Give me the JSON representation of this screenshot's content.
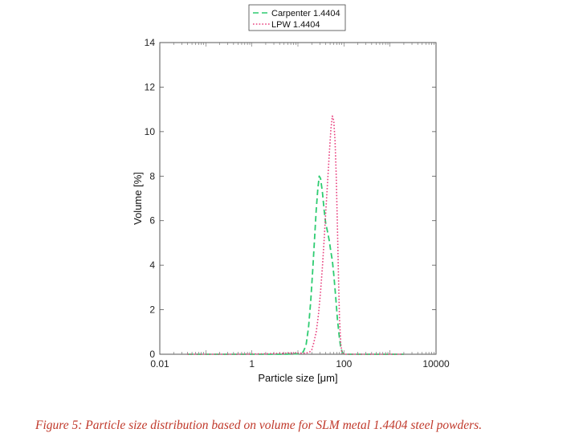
{
  "chart_data": {
    "type": "line",
    "xlabel": "Particle size [μm]",
    "ylabel": "Volume [%]",
    "xscale": "log",
    "xlim": [
      0.01,
      10000
    ],
    "ylim": [
      0,
      14
    ],
    "xticks": [
      0.01,
      1,
      100,
      10000
    ],
    "xtick_labels": [
      "0.01",
      "1",
      "100",
      "10000"
    ],
    "yticks": [
      0,
      2,
      4,
      6,
      8,
      10,
      12,
      14
    ],
    "ytick_labels": [
      "0",
      "2",
      "4",
      "6",
      "8",
      "10",
      "12",
      "14"
    ],
    "legend_position": "top-center",
    "grid": false,
    "series": [
      {
        "name": "Carpenter 1.4404",
        "color": "#2ecc71",
        "style": "dashed",
        "x": [
          0.04,
          0.1,
          0.5,
          2,
          5,
          10,
          13,
          15,
          17,
          19,
          21,
          23,
          25,
          27,
          29,
          31,
          34,
          37,
          40,
          44,
          48,
          52,
          56,
          60,
          66,
          72,
          79,
          85,
          92,
          100,
          120,
          200,
          500,
          1000,
          2000
        ],
        "y": [
          0,
          0,
          0,
          0,
          0,
          0.02,
          0.1,
          0.4,
          1.2,
          2.4,
          3.8,
          5.2,
          6.5,
          7.4,
          8.0,
          7.9,
          7.3,
          6.5,
          5.9,
          5.5,
          5.1,
          4.6,
          4.2,
          3.6,
          2.6,
          1.6,
          0.8,
          0.3,
          0.1,
          0,
          0,
          0,
          0,
          0,
          0
        ]
      },
      {
        "name": "LPW 1.4404",
        "color": "#e8407e",
        "style": "dotted",
        "x": [
          0.04,
          0.1,
          0.5,
          2,
          5,
          10,
          15,
          18,
          20,
          22,
          25,
          28,
          31,
          34,
          37,
          40,
          44,
          48,
          52,
          56,
          60,
          64,
          68,
          72,
          76,
          80,
          85,
          90,
          100,
          150,
          500,
          1000,
          2000
        ],
        "y": [
          0,
          0,
          0,
          0.02,
          0.05,
          0.05,
          0.05,
          0.1,
          0.2,
          0.5,
          1.0,
          1.8,
          2.8,
          3.9,
          5.1,
          6.3,
          7.7,
          9.0,
          10.1,
          10.7,
          10.5,
          9.6,
          8.0,
          5.8,
          3.5,
          1.6,
          0.5,
          0.1,
          0,
          0,
          0,
          0,
          0
        ]
      }
    ]
  },
  "caption": "Figure 5: Particle size distribution based on volume for SLM metal 1.4404 steel powders."
}
